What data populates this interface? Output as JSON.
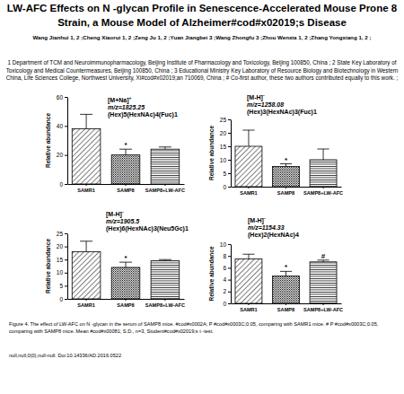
{
  "header": {
    "title": "LW-AFC Effects on N -glycan Profile in Senescence-Accelerated Mouse Prone 8 Strain, a Mouse Model of Alzheimer#cod#x02019;s Disease",
    "authors": "Wang Jianhui 1, 2 ;Cheng Xiaorui 1, 2 ;Zeng Ju 1, 2 ;Yuan Jiangbei 3 ;Wang Zhongfu 3 ;Zhou Wenxia 1, 2 ;Zhang Yongxiang 1, 2 ;",
    "affiliations": "1 Department of TCM and Neuroimmunopharmacology, Beijing Institute of Pharmacology and Toxicology, Beijing 100850, China ; 2 State Key Laboratory of Toxicology and Medical Countermeasures, Beijing 100850, China ; 3 Educational Ministry Key Laboratory of Resource Biology and Biotechnology in Western China, Life Sciences College, Northwest University, Xi#cod#x02019;an 710069, China ; # Co-first author, these two authors contributed equally to this work. ;"
  },
  "chart_data": [
    {
      "type": "bar",
      "ion": "[M+Na]",
      "ion_charge": "+",
      "mz": "m/z=1825.25",
      "composition": "(Hex)5(HexNAc)4(Fuc)1",
      "y_label": "Relative abundance",
      "categories": [
        "SAMR1",
        "SAMP8",
        "SAMP8+LW-AFC"
      ],
      "values": [
        38,
        20,
        24
      ],
      "errors": [
        10,
        4,
        1.5
      ],
      "ylim": [
        0,
        60
      ],
      "yticks": [
        0,
        20,
        40,
        60
      ],
      "annotations": [
        {
          "text": "*",
          "category": "SAMP8"
        }
      ]
    },
    {
      "type": "bar",
      "ion": "[M-H]",
      "ion_charge": "-",
      "mz": "m/z=1258.08",
      "composition": "(Hex)3(HexNAc)3(Fuc)1",
      "y_label": "Relative abundance",
      "categories": [
        "SAMR1",
        "SAMP8",
        "SAMP8+LW-AFC"
      ],
      "values": [
        15,
        7.5,
        10
      ],
      "errors": [
        6,
        1,
        4
      ],
      "ylim": [
        0,
        25
      ],
      "yticks": [
        0,
        5,
        10,
        15,
        20,
        25
      ],
      "annotations": [
        {
          "text": "*",
          "category": "SAMP8"
        }
      ]
    },
    {
      "type": "bar",
      "ion": "[M-H]",
      "ion_charge": "-",
      "mz": "m/z=1905.5",
      "composition": "(Hex)6(HexNAc)3(Neu5Gc)1",
      "y_label": "Relative abundance",
      "categories": [
        "SAMR1",
        "SAMP8",
        "SAMP8+LW-AFC"
      ],
      "values": [
        18,
        12,
        14.5
      ],
      "errors": [
        4,
        2,
        0.5
      ],
      "ylim": [
        0,
        25
      ],
      "yticks": [
        0,
        5,
        10,
        15,
        20,
        25
      ],
      "annotations": [
        {
          "text": "*",
          "category": "SAMP8"
        }
      ]
    },
    {
      "type": "bar",
      "ion": "[M-H]",
      "ion_charge": "-",
      "mz": "m/z=1154.33",
      "composition": "(Hex)2(HexNAc)4",
      "y_label": "Relative abundance",
      "categories": [
        "SAMR1",
        "SAMP8",
        "SAMP8+LW-AFC"
      ],
      "values": [
        7.5,
        4.6,
        7
      ],
      "errors": [
        0.8,
        0.8,
        0.3
      ],
      "ylim": [
        0,
        10
      ],
      "yticks": [
        0,
        2,
        4,
        6,
        8,
        10
      ],
      "annotations": [
        {
          "text": "*",
          "category": "SAMP8"
        },
        {
          "text": "#",
          "category": "SAMP8+LW-AFC"
        }
      ]
    }
  ],
  "caption": "Figure 4.   The effect of LW-AFC on  N -glycan in the serum of SAMP8 mice. #cod#x0002A;  P #cod#x0003C;0.05, comparing with SAMR1 mice. #   P #cod#x0003C;0.05, comparing with SAMP8 mice. Mean #cod#x00081; S.D., n=3, Student#cod#x02019;s  t -test.",
  "footer": "null,null,0(0),null-null. Doi:10.14336/AD.2016.0522"
}
